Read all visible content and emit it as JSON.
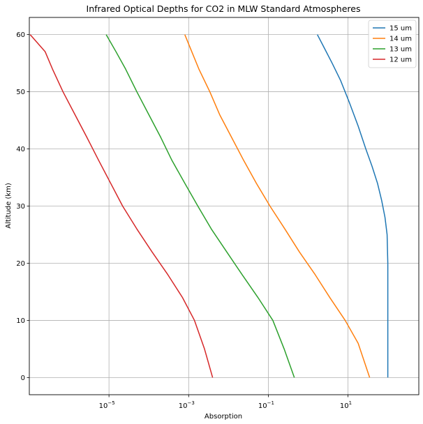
{
  "chart_data": {
    "type": "line",
    "title": "Infrared Optical Depths for CO2 in MLW Standard Atmospheres",
    "xlabel": "Absorption",
    "ylabel": "Altitude (km)",
    "xscale": "log",
    "xlim": [
      1e-07,
      600
    ],
    "ylim": [
      -3,
      63
    ],
    "x_ticks": [
      {
        "value": 1e-05,
        "label": "10",
        "exp": "−5"
      },
      {
        "value": 0.001,
        "label": "10",
        "exp": "−3"
      },
      {
        "value": 0.1,
        "label": "10",
        "exp": "−1"
      },
      {
        "value": 10,
        "label": "10",
        "exp": "1"
      }
    ],
    "y_ticks": [
      0,
      10,
      20,
      30,
      40,
      50,
      60
    ],
    "grid": true,
    "legend_position": "top-right",
    "series": [
      {
        "name": "15 um",
        "color": "#1f77b4",
        "points": [
          [
            100,
            0
          ],
          [
            100,
            10
          ],
          [
            100,
            20
          ],
          [
            96,
            25
          ],
          [
            85,
            28
          ],
          [
            70,
            31
          ],
          [
            55,
            34
          ],
          [
            40,
            37
          ],
          [
            28,
            40
          ],
          [
            18,
            44
          ],
          [
            11,
            48
          ],
          [
            6.5,
            52
          ],
          [
            4,
            55
          ],
          [
            2.4,
            58
          ],
          [
            1.7,
            60
          ]
        ]
      },
      {
        "name": "14 um",
        "color": "#ff7f0e",
        "points": [
          [
            35,
            0
          ],
          [
            18,
            6
          ],
          [
            8.5,
            10
          ],
          [
            3.5,
            14
          ],
          [
            1.5,
            18
          ],
          [
            0.6,
            22
          ],
          [
            0.26,
            26
          ],
          [
            0.11,
            30
          ],
          [
            0.05,
            34
          ],
          [
            0.024,
            38
          ],
          [
            0.012,
            42
          ],
          [
            0.006,
            46
          ],
          [
            0.0034,
            50
          ],
          [
            0.0018,
            54
          ],
          [
            0.0012,
            57
          ],
          [
            0.0008,
            60
          ]
        ]
      },
      {
        "name": "13 um",
        "color": "#2ca02c",
        "points": [
          [
            0.45,
            0
          ],
          [
            0.25,
            5
          ],
          [
            0.13,
            10
          ],
          [
            0.055,
            14
          ],
          [
            0.022,
            18
          ],
          [
            0.009,
            22
          ],
          [
            0.0037,
            26
          ],
          [
            0.0017,
            30
          ],
          [
            0.0008,
            34
          ],
          [
            0.00038,
            38
          ],
          [
            0.0002,
            42
          ],
          [
            0.0001,
            46
          ],
          [
            5e-05,
            50
          ],
          [
            2.6e-05,
            54
          ],
          [
            1.5e-05,
            57
          ],
          [
            8.5e-06,
            60
          ]
        ]
      },
      {
        "name": "12 um",
        "color": "#d62728",
        "points": [
          [
            0.004,
            0
          ],
          [
            0.0025,
            5
          ],
          [
            0.0014,
            10
          ],
          [
            0.0007,
            14
          ],
          [
            0.0003,
            18
          ],
          [
            0.00012,
            22
          ],
          [
            5e-05,
            26
          ],
          [
            2.2e-05,
            30
          ],
          [
            1.1e-05,
            34
          ],
          [
            5.5e-06,
            38
          ],
          [
            2.8e-06,
            42
          ],
          [
            1.4e-06,
            46
          ],
          [
            7e-07,
            50
          ],
          [
            3.8e-07,
            54
          ],
          [
            2.5e-07,
            57
          ],
          [
            1.05e-07,
            60
          ]
        ]
      }
    ]
  }
}
